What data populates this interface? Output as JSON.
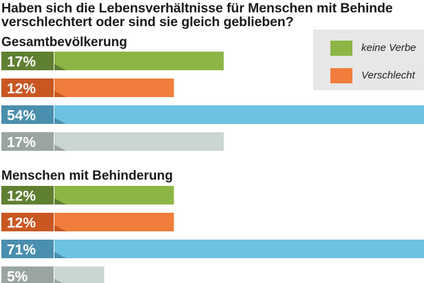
{
  "title_lines": [
    "Haben sich die Lebensverhältnisse für Menschen mit Behinde",
    "verschlechtert oder sind sie gleich geblieben?"
  ],
  "legend": [
    {
      "label": "keine Verbe",
      "color": "#8db545"
    },
    {
      "label": "Verschlecht",
      "color": "#f07d3b"
    }
  ],
  "colors": {
    "green": "#8db545",
    "orange": "#f07d3b",
    "blue": "#6cc2e0",
    "grey": "#c9d6d1",
    "green_tab": "#5f7f31",
    "orange_tab": "#c95722",
    "blue_tab": "#4a8fae",
    "grey_tab": "#9aa5a1"
  },
  "chart_data": {
    "type": "bar",
    "orientation": "horizontal",
    "unit": "%",
    "groups": [
      {
        "name": "Gesamtbevölkerung",
        "bars": [
          {
            "value": 17,
            "label": "17%",
            "color_key": "green"
          },
          {
            "value": 12,
            "label": "12%",
            "color_key": "orange"
          },
          {
            "value": 54,
            "label": "54%",
            "color_key": "blue"
          },
          {
            "value": 17,
            "label": "17%",
            "color_key": "grey"
          }
        ]
      },
      {
        "name": "Menschen mit Behinderung",
        "bars": [
          {
            "value": 12,
            "label": "12%",
            "color_key": "green"
          },
          {
            "value": 12,
            "label": "12%",
            "color_key": "orange"
          },
          {
            "value": 71,
            "label": "71%",
            "color_key": "blue"
          },
          {
            "value": 5,
            "label": "5%",
            "color_key": "grey"
          }
        ]
      }
    ]
  }
}
